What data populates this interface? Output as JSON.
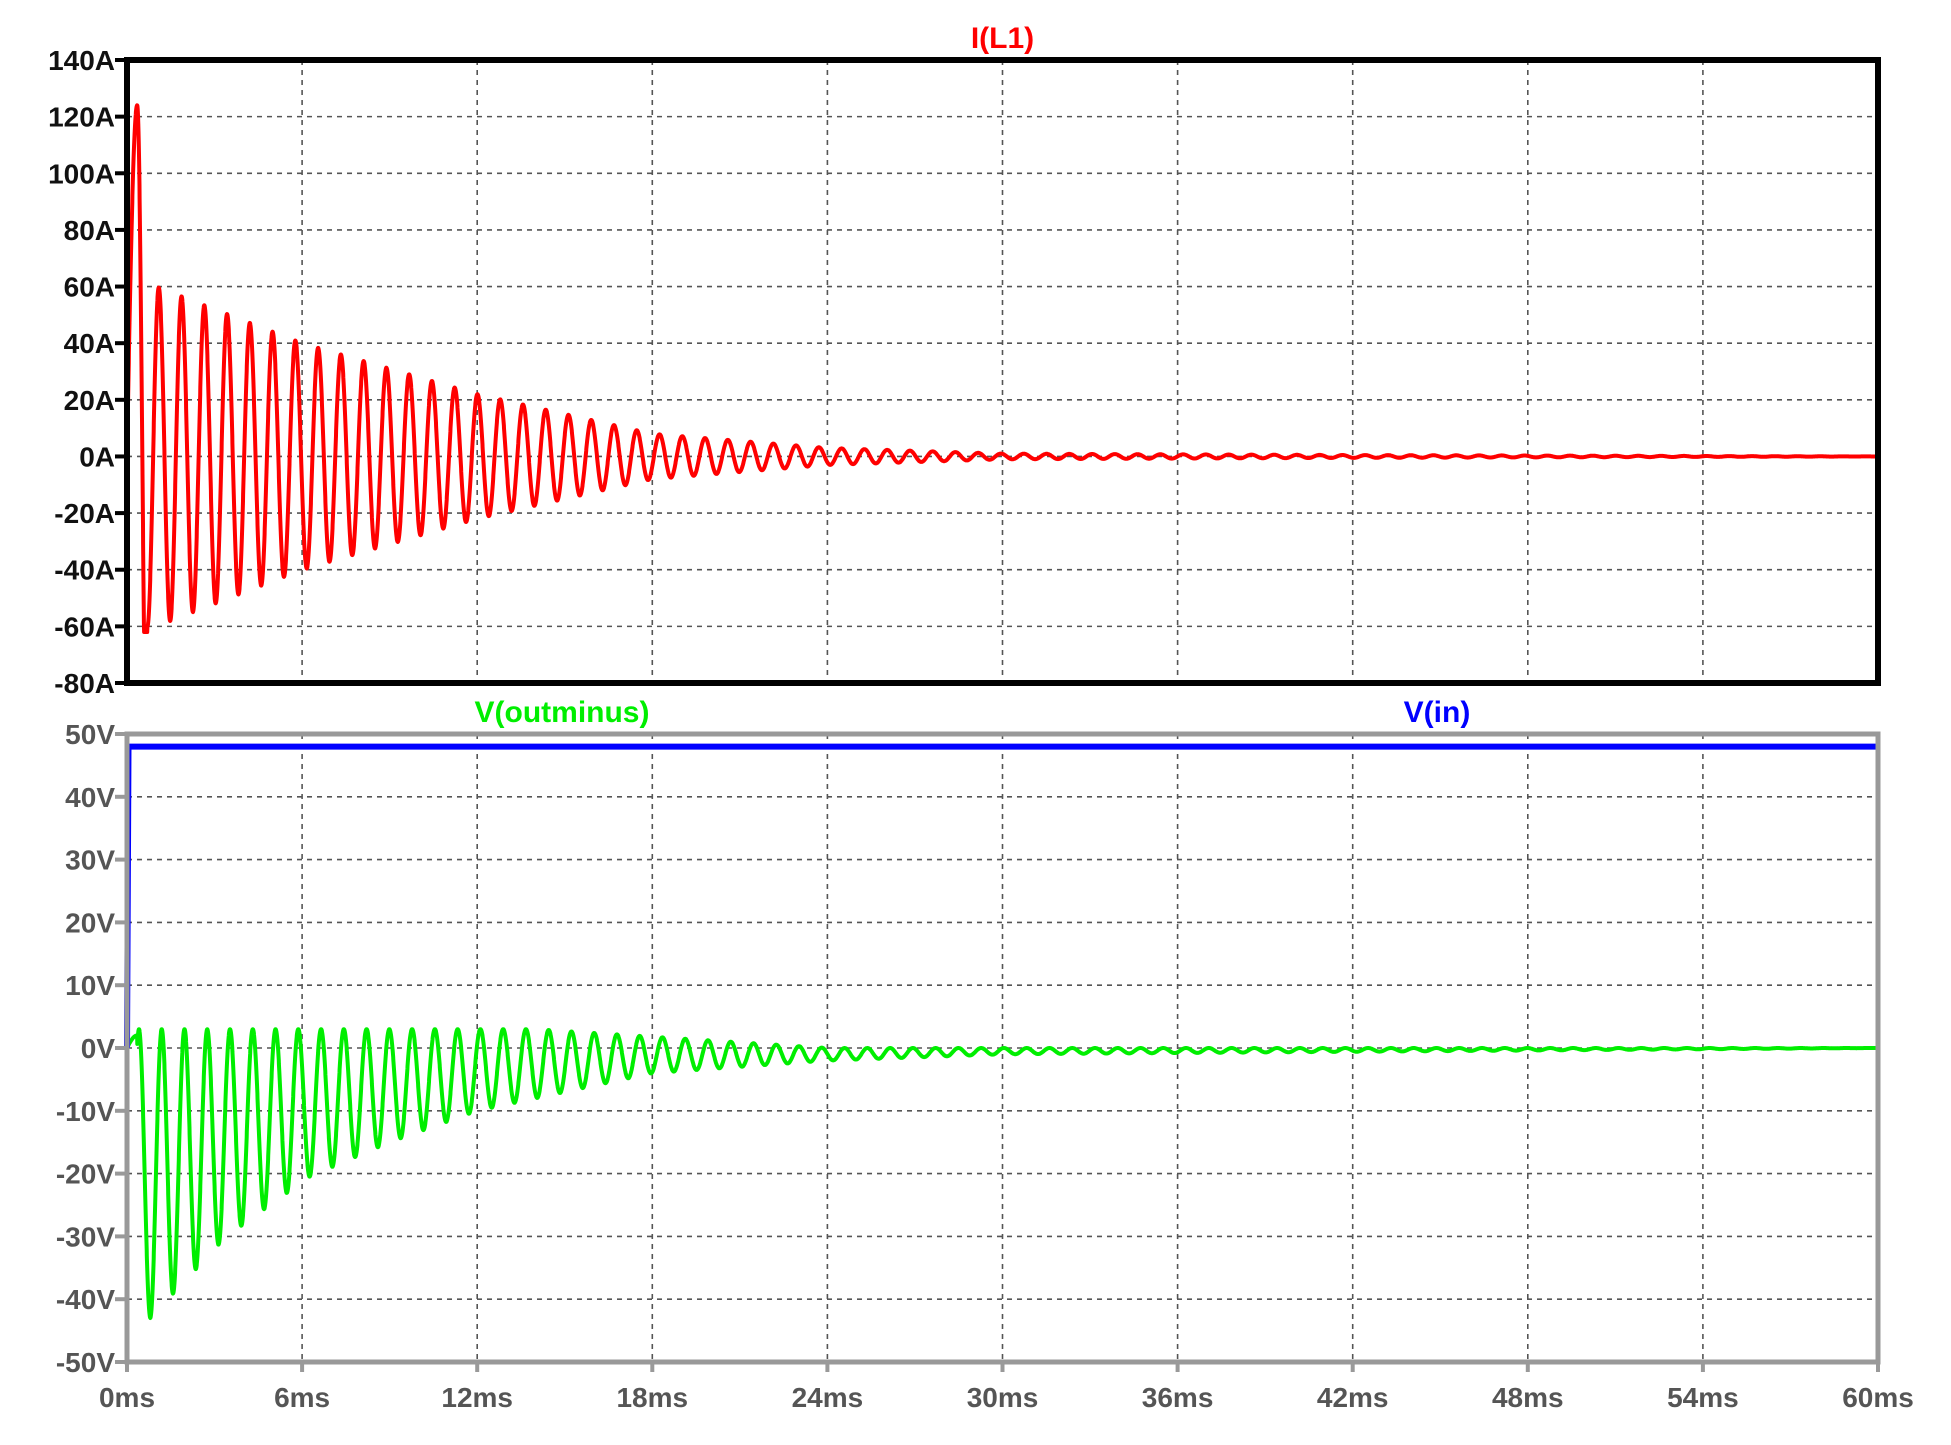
{
  "chart_data": [
    {
      "type": "line",
      "panel": "top",
      "frame_color": "#000000",
      "x_unit": "ms",
      "xlim": [
        0,
        60
      ],
      "ylim": [
        -80,
        140
      ],
      "y_ticks": [
        140,
        120,
        100,
        80,
        60,
        40,
        20,
        0,
        -20,
        -40,
        -60,
        -80
      ],
      "y_tick_labels": [
        "140A",
        "120A",
        "100A",
        "80A",
        "60A",
        "40A",
        "20A",
        "0A",
        "-20A",
        "-40A",
        "-60A",
        "-80A"
      ],
      "grid": true,
      "series": [
        {
          "name": "I(L1)",
          "color": "#ff0000",
          "waveform": "damped-oscillation",
          "offset": 0,
          "initial_peak": 124,
          "first_cycles_peaks": [
            124,
            60,
            52,
            46,
            41,
            37,
            33,
            30
          ],
          "first_cycles_troughs": [
            -62,
            -58,
            -52,
            -48,
            -44,
            -41,
            -38,
            -35
          ],
          "envelope_amplitude_at_ms": [
            [
              1,
              60
            ],
            [
              6,
              40
            ],
            [
              12,
              22
            ],
            [
              18,
              8
            ],
            [
              24,
              3
            ],
            [
              30,
              1
            ],
            [
              42,
              0.5
            ],
            [
              60,
              0
            ]
          ],
          "oscillation_period_ms": 0.78,
          "settles_to": 0
        }
      ]
    },
    {
      "type": "line",
      "panel": "bottom",
      "frame_color": "#999999",
      "x_unit": "ms",
      "xlim": [
        0,
        60
      ],
      "ylim": [
        -50,
        50
      ],
      "x_ticks": [
        0,
        6,
        12,
        18,
        24,
        30,
        36,
        42,
        48,
        54,
        60
      ],
      "x_tick_labels": [
        "0ms",
        "6ms",
        "12ms",
        "18ms",
        "24ms",
        "30ms",
        "36ms",
        "42ms",
        "48ms",
        "54ms",
        "60ms"
      ],
      "y_ticks": [
        50,
        40,
        30,
        20,
        10,
        0,
        -10,
        -20,
        -30,
        -40,
        -50
      ],
      "y_tick_labels": [
        "50V",
        "40V",
        "30V",
        "20V",
        "10V",
        "0V",
        "-10V",
        "-20V",
        "-30V",
        "-40V",
        "-50V"
      ],
      "grid": true,
      "series": [
        {
          "name": "V(outminus)",
          "color": "#00ee00",
          "waveform": "damped-oscillation-negative",
          "peaks": 3,
          "troughs_at_ms": [
            [
              0.8,
              -43
            ],
            [
              1.6,
              -39
            ],
            [
              2.4,
              -35
            ],
            [
              3.2,
              -31
            ],
            [
              4.0,
              -28
            ],
            [
              5.5,
              -23
            ],
            [
              6.0,
              -21
            ],
            [
              9.0,
              -15
            ],
            [
              12.0,
              -10
            ],
            [
              18.0,
              -4
            ],
            [
              24.0,
              -2
            ],
            [
              30.0,
              -1
            ],
            [
              60.0,
              0
            ]
          ],
          "oscillation_period_ms": 0.78,
          "settles_to": 0
        },
        {
          "name": "V(in)",
          "color": "#0000ff",
          "waveform": "step",
          "points": [
            [
              0,
              0
            ],
            [
              0.05,
              48
            ],
            [
              60,
              48
            ]
          ]
        }
      ]
    }
  ]
}
